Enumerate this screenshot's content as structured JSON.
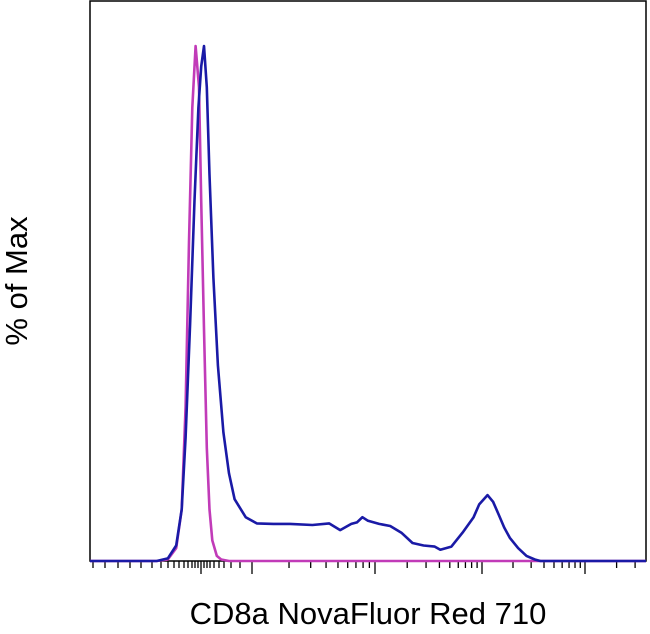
{
  "chart_data": {
    "type": "line",
    "title": "",
    "xlabel": "CD8a NovaFluor Red 710",
    "ylabel": "% of Max",
    "xscale": "biexponential (logicle)",
    "x_tick_labels_shown": false,
    "y_tick_labels_shown": false,
    "grid": false,
    "legend": "none",
    "xlim": [
      0,
      1
    ],
    "ylim": [
      0,
      100
    ],
    "x_units_note": "x expressed as fraction of axis range (no printed tick labels)",
    "series": [
      {
        "color": "#c13bb8",
        "x": [
          0.0,
          0.12,
          0.14,
          0.155,
          0.165,
          0.172,
          0.178,
          0.184,
          0.19,
          0.196,
          0.2,
          0.205,
          0.21,
          0.215,
          0.22,
          0.228,
          0.236,
          0.25,
          0.27,
          1.0
        ],
        "y": [
          0,
          0,
          0.3,
          2.5,
          10,
          30,
          62,
          88,
          100,
          92,
          70,
          45,
          22,
          10,
          4,
          1,
          0.3,
          0,
          0,
          0
        ]
      },
      {
        "color": "#1a1aa6",
        "x": [
          0.0,
          0.12,
          0.14,
          0.155,
          0.165,
          0.172,
          0.18,
          0.188,
          0.195,
          0.2,
          0.205,
          0.21,
          0.215,
          0.222,
          0.23,
          0.24,
          0.25,
          0.26,
          0.28,
          0.3,
          0.33,
          0.36,
          0.4,
          0.43,
          0.45,
          0.47,
          0.48,
          0.49,
          0.5,
          0.52,
          0.54,
          0.56,
          0.58,
          0.6,
          0.62,
          0.63,
          0.65,
          0.67,
          0.69,
          0.7,
          0.715,
          0.725,
          0.735,
          0.745,
          0.755,
          0.77,
          0.785,
          0.8,
          0.81,
          0.82,
          0.83,
          0.84,
          1.0
        ],
        "y": [
          0,
          0,
          0.5,
          3,
          10,
          24,
          46,
          70,
          88,
          96,
          100,
          92,
          75,
          55,
          38,
          25,
          17,
          12,
          8.5,
          7.3,
          7.2,
          7.2,
          7.0,
          7.3,
          6.0,
          7.2,
          7.5,
          8.5,
          7.8,
          7.2,
          6.8,
          5.5,
          3.5,
          3.0,
          2.8,
          2.2,
          2.8,
          5.5,
          8.5,
          11,
          12.8,
          11.5,
          9,
          6.5,
          4.5,
          2.5,
          1.0,
          0.3,
          0,
          0,
          0,
          0,
          0
        ]
      }
    ]
  }
}
